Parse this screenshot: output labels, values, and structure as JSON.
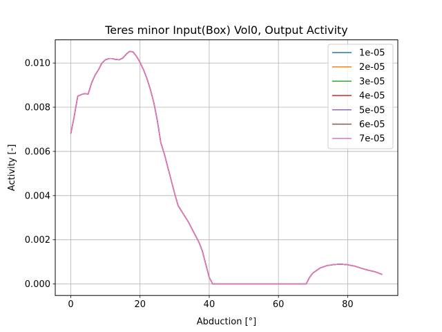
{
  "chart_data": {
    "type": "line",
    "title": "Teres minor Input(Box) Vol0, Output Activity",
    "xlabel": "Abduction [°]",
    "ylabel": "Activity [-]",
    "xlim": [
      -4.5,
      94.5
    ],
    "ylim": [
      -0.00052,
      0.01105
    ],
    "xticks": [
      0,
      20,
      40,
      60,
      80
    ],
    "xtick_labels": [
      "0",
      "20",
      "40",
      "60",
      "80"
    ],
    "yticks": [
      0.0,
      0.002,
      0.004,
      0.006,
      0.008,
      0.01
    ],
    "ytick_labels": [
      "0.000",
      "0.002",
      "0.004",
      "0.006",
      "0.008",
      "0.010"
    ],
    "grid": true,
    "legend_position": "top-right",
    "x": [
      0,
      1,
      2,
      3,
      4,
      5,
      6,
      7,
      8,
      9,
      10,
      11,
      12,
      13,
      14,
      15,
      16,
      17,
      18,
      19,
      20,
      21,
      22,
      23,
      24,
      25,
      26,
      27,
      28,
      29,
      30,
      31,
      32,
      33,
      34,
      35,
      36,
      37,
      38,
      39,
      40,
      41,
      42,
      45,
      50,
      55,
      60,
      65,
      68,
      69,
      70,
      72,
      74,
      76,
      78,
      80,
      82,
      84,
      86,
      88,
      90
    ],
    "y_shared": [
      0.0068,
      0.0076,
      0.0085,
      0.00857,
      0.00862,
      0.00859,
      0.0091,
      0.00945,
      0.0097,
      0.01,
      0.01015,
      0.0102,
      0.0102,
      0.01016,
      0.01015,
      0.01022,
      0.0104,
      0.01053,
      0.0105,
      0.0103,
      0.01003,
      0.0097,
      0.0093,
      0.0088,
      0.0082,
      0.0074,
      0.0064,
      0.0059,
      0.0053,
      0.0047,
      0.0041,
      0.00355,
      0.0033,
      0.00305,
      0.0028,
      0.0025,
      0.0022,
      0.0019,
      0.0015,
      0.0009,
      0.0003,
      0.0,
      0.0,
      0.0,
      0.0,
      0.0,
      0.0,
      0.0,
      0.0,
      0.0003,
      0.0005,
      0.00072,
      0.00083,
      0.00088,
      0.0009,
      0.00087,
      0.00081,
      0.00071,
      0.00062,
      0.00055,
      0.00043
    ],
    "series": [
      {
        "name": "1e-05",
        "color": "#1f77b4"
      },
      {
        "name": "2e-05",
        "color": "#ff7f0e"
      },
      {
        "name": "3e-05",
        "color": "#2ca02c"
      },
      {
        "name": "4e-05",
        "color": "#d62728"
      },
      {
        "name": "5e-05",
        "color": "#9467bd"
      },
      {
        "name": "6e-05",
        "color": "#8c564b"
      },
      {
        "name": "7e-05",
        "color": "#e377c2"
      }
    ]
  }
}
